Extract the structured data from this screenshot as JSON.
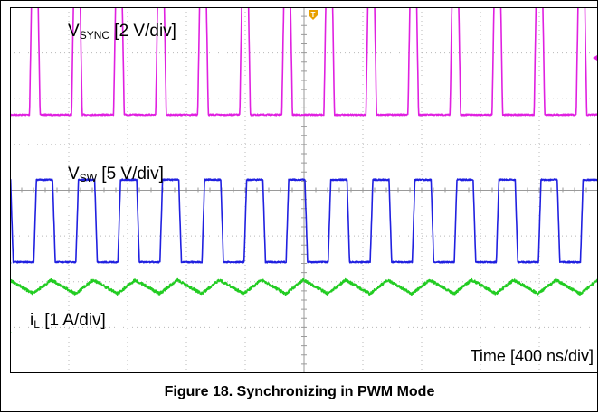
{
  "chart_data": {
    "type": "line",
    "title": "",
    "grid": true,
    "x_axis": {
      "divisions": 10,
      "unit_label": "Time [400 ns/div]",
      "ns_per_div": 400
    },
    "y_axis": {
      "divisions": 8
    },
    "period_ns": 286,
    "series": [
      {
        "name": "VSYNC",
        "label_main": "V",
        "label_sub": "SYNC",
        "label_scale": " [2 V/div]",
        "color": "#e020e0",
        "channel": "3",
        "shape": "pulse",
        "low_div": 0,
        "high_div": 2.8,
        "first_rise_ns": 133,
        "high_ns": 42,
        "edge_ns": 15
      },
      {
        "name": "VSW",
        "label_main": "V",
        "label_sub": "SW",
        "label_scale": " [5 V/div]",
        "color": "#2020e0",
        "channel": "1",
        "shape": "pulse",
        "low_div": 0,
        "high_div": 1.8,
        "first_rise_ns": 162,
        "high_ns": 110,
        "edge_ns": 18
      },
      {
        "name": "iL",
        "label_main": "i",
        "label_sub": "L",
        "label_scale": " [1 A/div]",
        "color": "#22cc22",
        "channel": "4",
        "shape": "triangle",
        "center_div": 1.1,
        "amplitude_div": 0.3,
        "first_valley_ns": 160,
        "rise_fraction": 0.42
      }
    ]
  },
  "caption": "Figure 18. Synchronizing in PWM Mode",
  "colors": {
    "trigger": "#e8a000",
    "grid": "#b8b8b8",
    "frame": "#000000"
  }
}
